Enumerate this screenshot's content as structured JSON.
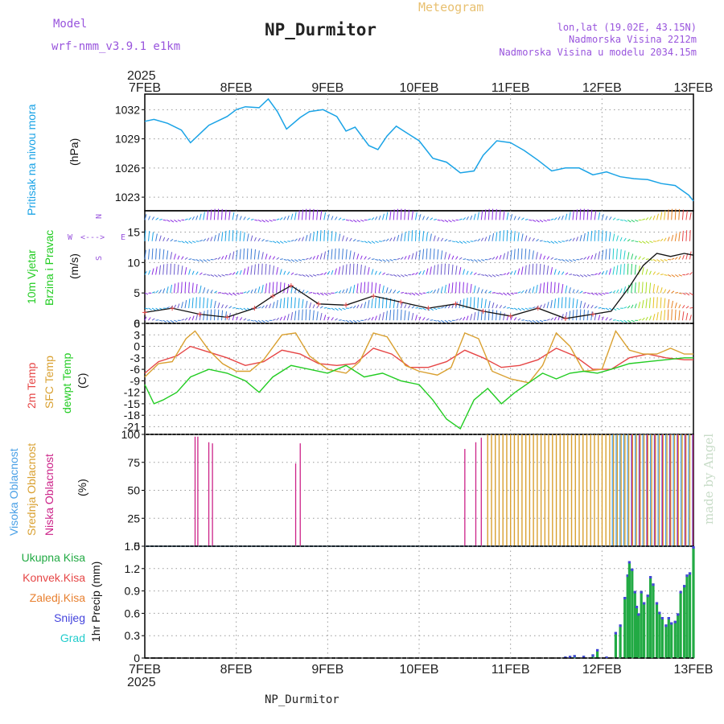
{
  "header": {
    "model_label": "Model",
    "model_name": "wrf-nmm_v3.9.1 e1km",
    "title": "NP_Durmitor",
    "subtitle": "Meteogram",
    "coords": "lon,lat (19.02E, 43.15N)",
    "altitude": "Nadmorska Visina 2212m",
    "model_altitude": "Nadmorska Visina u modelu 2034.15m"
  },
  "top_year": "2025",
  "bottom_year": "2025",
  "footer_station": "NP_Durmitor",
  "watermark": "made by Angel",
  "colors": {
    "pressure": "#1aa3e6",
    "temp2m": "#e64646",
    "sfc": "#d9a030",
    "dewpt": "#22cc22",
    "cloud_high": "#4aa0e6",
    "cloud_mid": "#d9a030",
    "cloud_low": "#cc2288",
    "precip_total": "#22aa44",
    "snow": "#4444dd",
    "title_text": "#9955dd",
    "date_text": "#222222"
  },
  "x_axis": {
    "labels": [
      "7FEB",
      "8FEB",
      "9FEB",
      "10FEB",
      "11FEB",
      "12FEB",
      "13FEB"
    ]
  },
  "panels": {
    "pressure": {
      "label_main": "Pritisak na nivou mora",
      "unit": "(hPa)"
    },
    "wind": {
      "label_line1": "10m Vjetar",
      "label_line2": "Brzina i Pravac",
      "unit": "(m/s)",
      "compass": {
        "w": "W",
        "e": "E",
        "n": "N",
        "s": "S",
        "arrow": "<--->"
      }
    },
    "temp": {
      "label_2m": "2m Temp",
      "label_sfc": "SFC Temp",
      "label_dew": "dewpt Temp",
      "unit": "(C)"
    },
    "cloud": {
      "label_high": "Visoka Oblacnost",
      "label_mid": "Srednja Oblacnost",
      "label_low": "Niska Oblacnost",
      "unit": "(%)"
    },
    "precip": {
      "legend": [
        "Ukupna Kisa",
        "Konvek.Kisa",
        "Zaledj.Kisa",
        "Snijeg",
        "Grad"
      ],
      "label": "1hr Precip (mm)"
    }
  },
  "chart_data": [
    {
      "type": "line",
      "name": "pressure",
      "ylabel": "(hPa)",
      "ylim": [
        1021.6,
        1033.6
      ],
      "yticks": [
        1023,
        1026,
        1029,
        1032
      ],
      "x_days": [
        0,
        0.1,
        0.25,
        0.4,
        0.5,
        0.7,
        0.9,
        1.0,
        1.1,
        1.25,
        1.35,
        1.45,
        1.55,
        1.7,
        1.8,
        1.95,
        2.1,
        2.2,
        2.3,
        2.45,
        2.55,
        2.65,
        2.75,
        2.85,
        3.0,
        3.15,
        3.3,
        3.45,
        3.6,
        3.7,
        3.85,
        4.0,
        4.15,
        4.3,
        4.45,
        4.6,
        4.75,
        4.9,
        5.05,
        5.2,
        5.35,
        5.5,
        5.65,
        5.8,
        5.95,
        6.0
      ],
      "values": [
        1030.8,
        1031.0,
        1030.6,
        1029.9,
        1028.6,
        1030.4,
        1031.3,
        1032.0,
        1032.3,
        1032.2,
        1033.1,
        1031.8,
        1030.0,
        1031.2,
        1031.8,
        1032.0,
        1031.3,
        1029.8,
        1030.2,
        1028.3,
        1027.9,
        1029.3,
        1030.3,
        1029.7,
        1028.8,
        1027.0,
        1026.6,
        1025.5,
        1025.7,
        1027.3,
        1028.8,
        1028.6,
        1027.8,
        1026.8,
        1025.7,
        1026.0,
        1026.0,
        1025.3,
        1025.6,
        1025.1,
        1024.9,
        1024.8,
        1024.4,
        1024.2,
        1023.2,
        1022.6
      ]
    },
    {
      "type": "line",
      "name": "wind",
      "ylabel": "(m/s)",
      "ylim": [
        0,
        18.5
      ],
      "yticks": [
        0,
        5,
        10,
        15
      ],
      "x_days": [
        0,
        0.3,
        0.6,
        0.9,
        1.2,
        1.4,
        1.6,
        1.9,
        2.2,
        2.5,
        2.8,
        3.1,
        3.4,
        3.7,
        4.0,
        4.3,
        4.6,
        4.9,
        5.1,
        5.2,
        5.3,
        5.45,
        5.6,
        5.75,
        5.9,
        6.0
      ],
      "values": [
        1.8,
        2.5,
        1.5,
        1.0,
        2.5,
        4.5,
        6.2,
        3.2,
        3.0,
        4.5,
        3.5,
        2.5,
        3.2,
        2.0,
        1.2,
        2.5,
        0.8,
        1.5,
        2.0,
        4.0,
        6.0,
        9.5,
        11.5,
        11.0,
        11.5,
        11.2
      ],
      "barb_rows": [
        0.5,
        2.5,
        5,
        8,
        10.5,
        13.5,
        17
      ]
    },
    {
      "type": "line",
      "name": "temperature",
      "ylabel": "(C)",
      "ylim": [
        -23,
        6
      ],
      "yticks": [
        6,
        3,
        0,
        -3,
        -6,
        -9,
        -12,
        -15,
        -18,
        -21
      ],
      "series": [
        {
          "name": "2m Temp",
          "x_days": [
            0,
            0.15,
            0.35,
            0.5,
            0.7,
            0.9,
            1.1,
            1.3,
            1.5,
            1.7,
            1.9,
            2.1,
            2.3,
            2.5,
            2.7,
            2.9,
            3.1,
            3.3,
            3.5,
            3.7,
            3.9,
            4.1,
            4.3,
            4.5,
            4.7,
            4.9,
            5.1,
            5.3,
            5.5,
            5.7,
            5.9,
            6.0
          ],
          "values": [
            -7.0,
            -4.0,
            -2.5,
            0.0,
            -1.5,
            -3.0,
            -5.0,
            -4.0,
            -1.0,
            -2.0,
            -4.5,
            -5.0,
            -4.5,
            -0.5,
            -2.0,
            -5.5,
            -5.5,
            -4.0,
            -1.0,
            -3.0,
            -5.5,
            -5.0,
            -3.5,
            -0.5,
            -2.5,
            -6.0,
            -6.0,
            -3.0,
            -2.0,
            -3.0,
            -3.5,
            -3.5
          ]
        },
        {
          "name": "SFC Temp",
          "x_days": [
            0,
            0.15,
            0.3,
            0.45,
            0.55,
            0.7,
            0.85,
            1.0,
            1.15,
            1.3,
            1.5,
            1.65,
            1.8,
            2.0,
            2.2,
            2.35,
            2.5,
            2.65,
            2.85,
            3.0,
            3.2,
            3.35,
            3.5,
            3.65,
            3.8,
            4.0,
            4.2,
            4.35,
            4.5,
            4.65,
            4.8,
            5.0,
            5.15,
            5.3,
            5.45,
            5.6,
            5.75,
            5.9,
            6.0
          ],
          "values": [
            -8.0,
            -4.5,
            -4.0,
            2.0,
            4.0,
            -1.0,
            -4.5,
            -6.5,
            -6.5,
            -3.5,
            3.0,
            3.5,
            -2.5,
            -6.0,
            -7.0,
            -4.0,
            3.5,
            2.5,
            -5.0,
            -6.5,
            -7.5,
            -5.5,
            3.5,
            2.0,
            -6.5,
            -8.5,
            -9.5,
            -5.0,
            3.5,
            0.0,
            -6.5,
            -6.0,
            4.0,
            -1.0,
            -2.0,
            -2.0,
            -0.5,
            -2.0,
            -2.0
          ]
        },
        {
          "name": "dewpt Temp",
          "x_days": [
            0,
            0.1,
            0.2,
            0.35,
            0.5,
            0.7,
            0.9,
            1.1,
            1.25,
            1.4,
            1.6,
            1.8,
            2.0,
            2.2,
            2.4,
            2.6,
            2.8,
            3.0,
            3.15,
            3.3,
            3.45,
            3.6,
            3.75,
            3.9,
            4.05,
            4.2,
            4.35,
            4.5,
            4.65,
            4.8,
            4.95,
            5.1,
            5.3,
            5.5,
            5.7,
            5.9,
            6.0
          ],
          "values": [
            -10.0,
            -15.0,
            -14.0,
            -12.0,
            -8.0,
            -6.0,
            -7.0,
            -9.0,
            -12.0,
            -8.0,
            -5.0,
            -6.0,
            -7.0,
            -5.0,
            -8.0,
            -7.0,
            -9.0,
            -10.0,
            -14.0,
            -19.0,
            -21.5,
            -14.0,
            -11.0,
            -15.0,
            -12.0,
            -9.5,
            -7.0,
            -8.5,
            -7.0,
            -6.5,
            -7.0,
            -6.0,
            -4.5,
            -4.0,
            -3.5,
            -3.0,
            -3.0
          ]
        }
      ]
    },
    {
      "type": "bar",
      "name": "cloud",
      "ylabel": "(%)",
      "ylim": [
        0,
        100
      ],
      "yticks": [
        0,
        25,
        50,
        75,
        100
      ],
      "low_cloud_spikes": {
        "x_days": [
          0.55,
          0.58,
          0.7,
          0.74,
          1.65,
          1.7,
          3.5,
          3.62,
          3.68
        ],
        "values": [
          98,
          98,
          93,
          92,
          74,
          92,
          87,
          93,
          97
        ]
      },
      "mid_cloud_start_day": 3.75,
      "high_cloud_start_day": 5.1,
      "low_cloud_start_day": 5.3
    },
    {
      "type": "bar",
      "name": "precip",
      "ylabel": "1hr Precip (mm)",
      "ylim": [
        0,
        1.5
      ],
      "yticks": [
        0,
        0.3,
        0.6,
        0.9,
        1.2,
        1.5
      ],
      "x_days": [
        4.6,
        4.65,
        4.7,
        4.8,
        4.9,
        4.95,
        5.05,
        5.15,
        5.2,
        5.25,
        5.28,
        5.3,
        5.33,
        5.36,
        5.38,
        5.4,
        5.43,
        5.46,
        5.5,
        5.53,
        5.56,
        5.6,
        5.63,
        5.66,
        5.7,
        5.73,
        5.76,
        5.8,
        5.83,
        5.86,
        5.9,
        5.93,
        5.96,
        6.0
      ],
      "values": [
        0.02,
        0.03,
        0.04,
        0.03,
        0.05,
        0.12,
        0.02,
        0.35,
        0.45,
        0.82,
        1.12,
        1.3,
        1.2,
        0.9,
        0.7,
        0.6,
        0.9,
        0.75,
        0.85,
        1.1,
        1.0,
        0.75,
        0.62,
        0.55,
        0.45,
        0.55,
        0.48,
        0.5,
        0.6,
        0.9,
        0.98,
        1.12,
        1.15,
        1.5
      ]
    }
  ]
}
